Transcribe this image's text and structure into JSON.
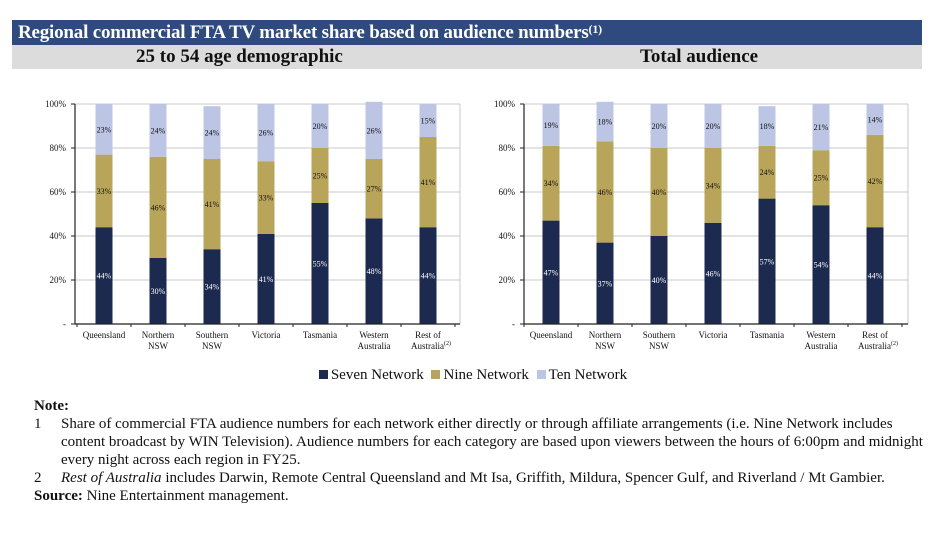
{
  "header": {
    "title": "Regional commercial FTA TV market share based on audience numbers",
    "title_footnote": "(1)"
  },
  "subheader": {
    "left": "25 to 54 age demographic",
    "right": "Total audience"
  },
  "colors": {
    "seven": "#1C2A4F",
    "nine": "#B9A55A",
    "ten": "#BCC5E4",
    "header_bg": "#2E4A7F",
    "subheader_bg": "#DCDCDC"
  },
  "chart_data": [
    {
      "type": "bar",
      "stacked": true,
      "title": "25 to 54 age demographic",
      "categories": [
        "Queensland",
        "Northern NSW",
        "Southern NSW",
        "Victoria",
        "Tasmania",
        "Western Australia",
        "Rest of Australia"
      ],
      "category_lines": [
        [
          "Queensland"
        ],
        [
          "Northern",
          "NSW"
        ],
        [
          "Southern",
          "NSW"
        ],
        [
          "Victoria"
        ],
        [
          "Tasmania"
        ],
        [
          "Western",
          "Australia"
        ],
        [
          "Rest of",
          "Australia"
        ]
      ],
      "category_footnotes": [
        "",
        "",
        "",
        "",
        "",
        "",
        "(2)"
      ],
      "series": [
        {
          "name": "Seven Network",
          "values": [
            44,
            30,
            34,
            41,
            55,
            48,
            44
          ]
        },
        {
          "name": "Nine Network",
          "values": [
            33,
            46,
            41,
            33,
            25,
            27,
            41
          ]
        },
        {
          "name": "Ten Network",
          "values": [
            23,
            24,
            24,
            26,
            20,
            26,
            15
          ]
        }
      ],
      "yticks": [
        "-",
        "20%",
        "40%",
        "60%",
        "80%",
        "100%"
      ],
      "ylim": [
        0,
        100
      ],
      "grid": true,
      "xlabel": "",
      "ylabel": ""
    },
    {
      "type": "bar",
      "stacked": true,
      "title": "Total audience",
      "categories": [
        "Queensland",
        "Northern NSW",
        "Southern NSW",
        "Victoria",
        "Tasmania",
        "Western Australia",
        "Rest of Australia"
      ],
      "category_lines": [
        [
          "Queensland"
        ],
        [
          "Northern",
          "NSW"
        ],
        [
          "Southern",
          "NSW"
        ],
        [
          "Victoria"
        ],
        [
          "Tasmania"
        ],
        [
          "Western",
          "Australia"
        ],
        [
          "Rest of",
          "Australia"
        ]
      ],
      "category_footnotes": [
        "",
        "",
        "",
        "",
        "",
        "",
        "(2)"
      ],
      "series": [
        {
          "name": "Seven Network",
          "values": [
            47,
            37,
            40,
            46,
            57,
            54,
            44
          ]
        },
        {
          "name": "Nine Network",
          "values": [
            34,
            46,
            40,
            34,
            24,
            25,
            42
          ]
        },
        {
          "name": "Ten Network",
          "values": [
            19,
            18,
            20,
            20,
            18,
            21,
            14
          ]
        }
      ],
      "yticks": [
        "-",
        "20%",
        "40%",
        "60%",
        "80%",
        "100%"
      ],
      "ylim": [
        0,
        100
      ],
      "grid": true,
      "xlabel": "",
      "ylabel": ""
    }
  ],
  "legend": {
    "position": "bottom-center",
    "items": [
      {
        "label": "Seven Network",
        "color_key": "seven"
      },
      {
        "label": "Nine Network",
        "color_key": "nine"
      },
      {
        "label": "Ten Network",
        "color_key": "ten"
      }
    ]
  },
  "notes": {
    "title": "Note:",
    "items": [
      {
        "num": "1",
        "italic_lead": "",
        "text": "Share of commercial FTA audience numbers for each network either directly or through affiliate arrangements (i.e. Nine Network includes content broadcast by WIN Television).  Audience numbers for each category are based upon viewers between the hours of 6:00pm and midnight every night across each region in FY25."
      },
      {
        "num": "2",
        "italic_lead": "Rest of Australia",
        "text": " includes Darwin, Remote Central Queensland and Mt Isa, Griffith, Mildura, Spencer Gulf, and Riverland / Mt Gambier."
      }
    ],
    "source_label": "Source:",
    "source_text": " Nine Entertainment management."
  }
}
